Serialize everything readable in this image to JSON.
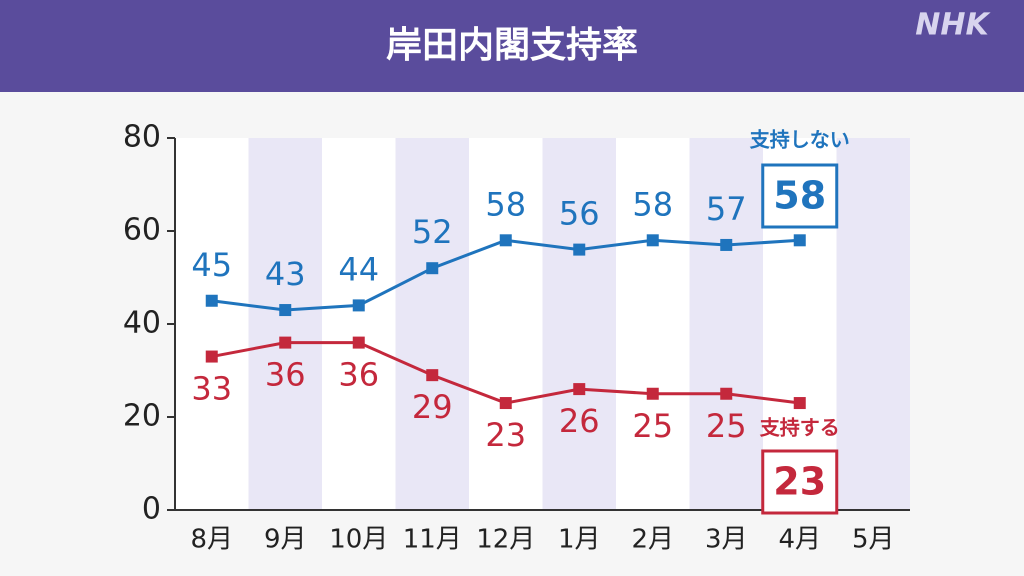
{
  "chart_data": {
    "type": "line",
    "title": "岸田内閣支持率",
    "logo": "NHK",
    "categories": [
      "8月",
      "9月",
      "10月",
      "11月",
      "12月",
      "1月",
      "2月",
      "3月",
      "4月",
      "5月"
    ],
    "series": [
      {
        "name": "支持しない",
        "color": "#1f74bd",
        "values": [
          45,
          43,
          44,
          52,
          58,
          56,
          58,
          57,
          58,
          null
        ]
      },
      {
        "name": "支持する",
        "color": "#c4283c",
        "values": [
          33,
          36,
          36,
          29,
          23,
          26,
          25,
          25,
          23,
          null
        ]
      }
    ],
    "ylim": [
      0,
      80
    ],
    "yticks": [
      0,
      20,
      40,
      60,
      80
    ],
    "band_shading": true
  }
}
